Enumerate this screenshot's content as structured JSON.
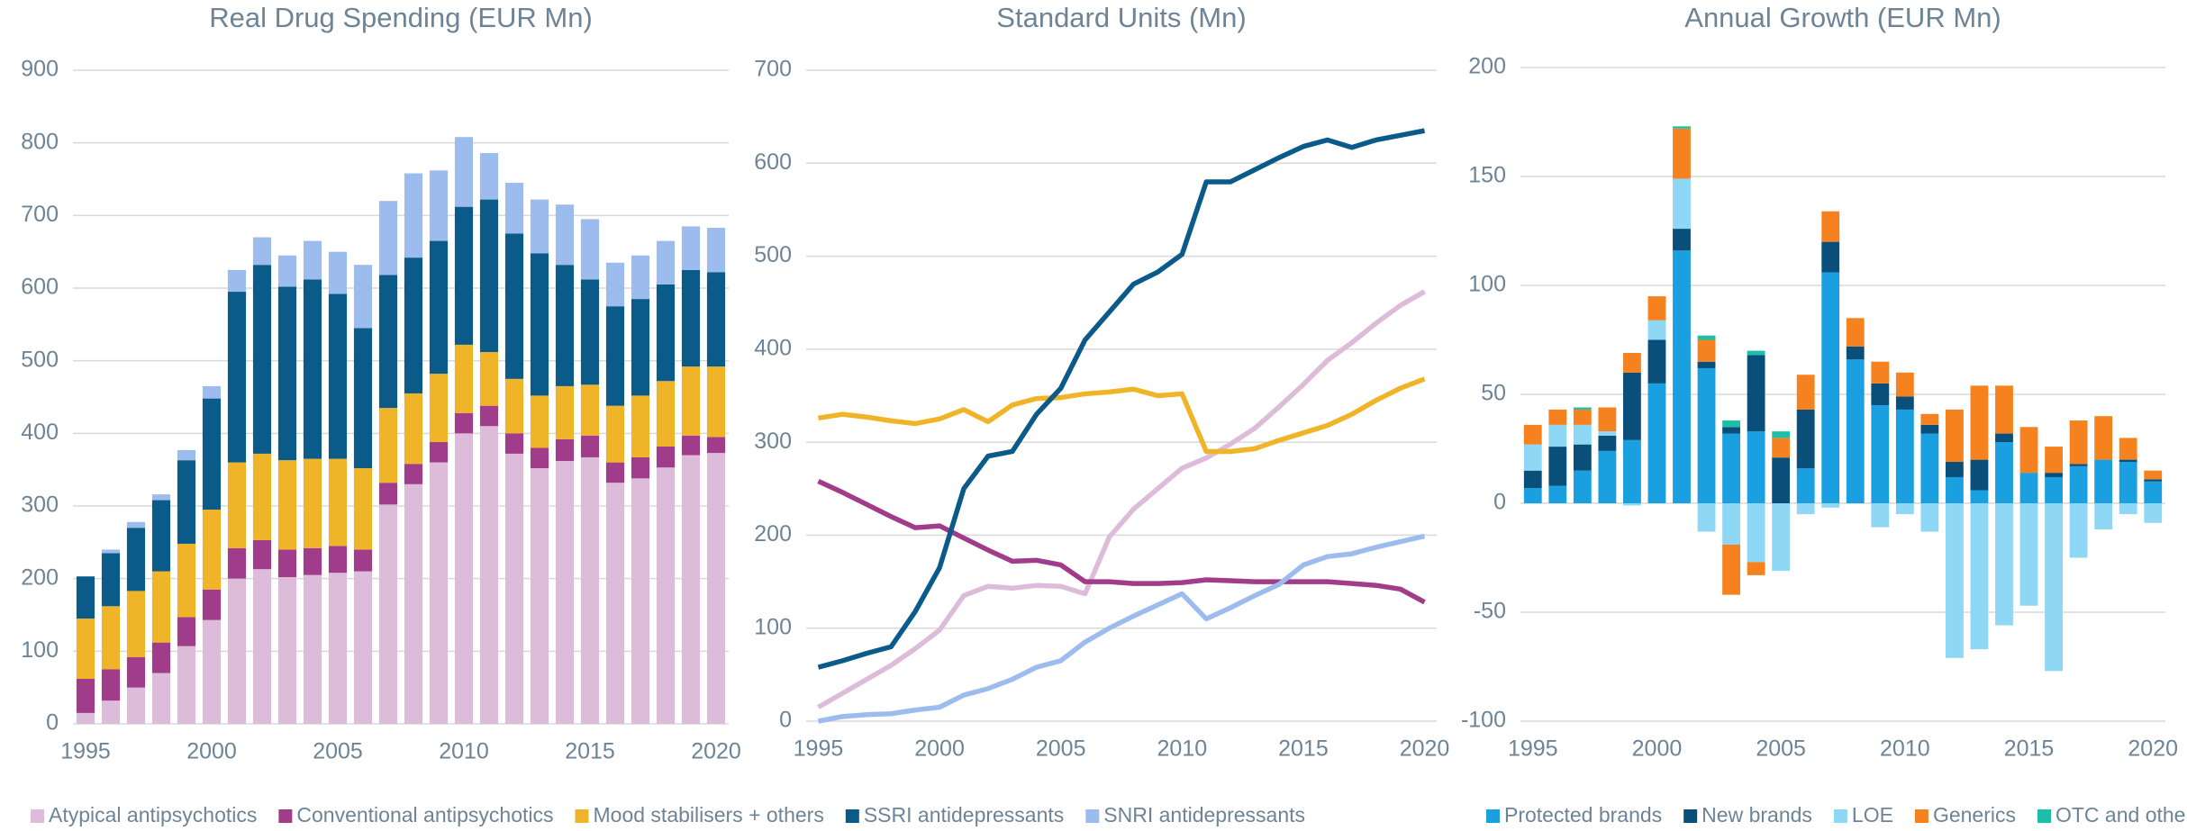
{
  "chart_data": [
    {
      "type": "bar",
      "stacked": true,
      "title": "Real Drug Spending (EUR Mn)",
      "grid": true,
      "legend": "bottom",
      "x": [
        1995,
        1996,
        1997,
        1998,
        1999,
        2000,
        2001,
        2002,
        2003,
        2004,
        2005,
        2006,
        2007,
        2008,
        2009,
        2010,
        2011,
        2012,
        2013,
        2014,
        2015,
        2016,
        2017,
        2018,
        2019,
        2020
      ],
      "xlim": [
        1994.5,
        2020.5
      ],
      "xticks": [
        1995,
        2000,
        2005,
        2010,
        2015,
        2020
      ],
      "ylim": [
        0,
        900
      ],
      "yticks": [
        0,
        100,
        200,
        300,
        400,
        500,
        600,
        700,
        800,
        900
      ],
      "series": [
        {
          "name": "Atypical antipsychotics",
          "color": "#dcbcd8",
          "values": [
            15,
            32,
            50,
            70,
            107,
            143,
            200,
            213,
            202,
            205,
            208,
            210,
            302,
            330,
            360,
            400,
            410,
            372,
            352,
            362,
            367,
            332,
            338,
            353,
            370,
            373
          ]
        },
        {
          "name": "Conventional antipsychotics",
          "color": "#a03c8a",
          "values": [
            47,
            43,
            42,
            42,
            40,
            42,
            42,
            40,
            38,
            37,
            37,
            30,
            30,
            28,
            28,
            28,
            28,
            28,
            28,
            30,
            30,
            28,
            29,
            29,
            27,
            22
          ]
        },
        {
          "name": "Mood stabilisers + others",
          "color": "#f0b429",
          "values": [
            83,
            87,
            91,
            98,
            101,
            110,
            118,
            119,
            123,
            123,
            120,
            112,
            103,
            97,
            94,
            94,
            74,
            75,
            72,
            73,
            70,
            78,
            85,
            90,
            95,
            97
          ]
        },
        {
          "name": "SSRI antidepressants",
          "color": "#0a5a8a",
          "values": [
            58,
            73,
            87,
            98,
            115,
            153,
            235,
            260,
            239,
            247,
            227,
            193,
            183,
            187,
            183,
            190,
            210,
            200,
            196,
            167,
            145,
            137,
            133,
            133,
            133,
            130
          ]
        },
        {
          "name": "SNRI antidepressants",
          "color": "#9dbcee",
          "values": [
            0,
            5,
            8,
            8,
            14,
            17,
            30,
            38,
            43,
            53,
            58,
            87,
            102,
            116,
            97,
            96,
            64,
            70,
            74,
            83,
            83,
            60,
            60,
            60,
            60,
            61
          ]
        }
      ]
    },
    {
      "type": "line",
      "title": "Standard Units (Mn)",
      "grid": true,
      "x": [
        1995,
        1996,
        1997,
        1998,
        1999,
        2000,
        2001,
        2002,
        2003,
        2004,
        2005,
        2006,
        2007,
        2008,
        2009,
        2010,
        2011,
        2012,
        2013,
        2014,
        2015,
        2016,
        2017,
        2018,
        2019,
        2020
      ],
      "xlim": [
        1994.5,
        2020.5
      ],
      "xticks": [
        1995,
        2000,
        2005,
        2010,
        2015,
        2020
      ],
      "ylim": [
        0,
        700
      ],
      "yticks": [
        0,
        100,
        200,
        300,
        400,
        500,
        600,
        700
      ],
      "series": [
        {
          "color": "#dcbcd8",
          "values": [
            15,
            30,
            45,
            60,
            78,
            98,
            135,
            145,
            143,
            146,
            145,
            137,
            198,
            228,
            250,
            272,
            283,
            298,
            315,
            338,
            362,
            388,
            407,
            428,
            447,
            462
          ]
        },
        {
          "color": "#a03c8a",
          "values": [
            258,
            246,
            233,
            220,
            208,
            210,
            197,
            184,
            172,
            173,
            168,
            150,
            150,
            148,
            148,
            149,
            152,
            151,
            150,
            150,
            150,
            150,
            148,
            146,
            142,
            128
          ]
        },
        {
          "color": "#f0b429",
          "values": [
            326,
            330,
            327,
            323,
            320,
            325,
            335,
            322,
            340,
            347,
            348,
            352,
            354,
            357,
            350,
            352,
            290,
            290,
            293,
            302,
            310,
            318,
            330,
            345,
            358,
            368
          ]
        },
        {
          "color": "#0a5a8a",
          "values": [
            58,
            65,
            73,
            80,
            118,
            165,
            250,
            285,
            290,
            330,
            358,
            410,
            440,
            470,
            483,
            502,
            580,
            580,
            593,
            606,
            618,
            625,
            617,
            625,
            630,
            635
          ]
        },
        {
          "color": "#9dbcee",
          "values": [
            0,
            5,
            7,
            8,
            12,
            15,
            28,
            35,
            45,
            58,
            65,
            85,
            100,
            113,
            125,
            137,
            110,
            122,
            135,
            147,
            168,
            177,
            180,
            187,
            193,
            199
          ]
        }
      ]
    },
    {
      "type": "bar",
      "stacked": true,
      "title": "Annual Growth (EUR Mn)",
      "grid": true,
      "legend": "bottom",
      "x": [
        1995,
        1996,
        1997,
        1998,
        1999,
        2000,
        2001,
        2002,
        2003,
        2004,
        2005,
        2006,
        2007,
        2008,
        2009,
        2010,
        2011,
        2012,
        2013,
        2014,
        2015,
        2016,
        2017,
        2018,
        2019,
        2020
      ],
      "xlim": [
        1994.5,
        2020.5
      ],
      "xticks": [
        1995,
        2000,
        2005,
        2010,
        2015,
        2020
      ],
      "ylim": [
        -100,
        200
      ],
      "yticks": [
        -100,
        -50,
        0,
        50,
        100,
        150,
        200
      ],
      "series": [
        {
          "name": "Protected brands",
          "color": "#1a9fe0",
          "values": [
            7,
            8,
            15,
            24,
            29,
            55,
            116,
            62,
            32,
            33,
            0,
            16,
            106,
            66,
            45,
            43,
            32,
            12,
            6,
            28,
            14,
            12,
            17,
            20,
            19,
            10
          ]
        },
        {
          "name": "New brands",
          "color": "#0a4f7a",
          "values": [
            8,
            18,
            12,
            7,
            31,
            20,
            10,
            3,
            3,
            35,
            21,
            27,
            14,
            6,
            10,
            6,
            4,
            7,
            14,
            4,
            0,
            2,
            1,
            0,
            1,
            1
          ]
        },
        {
          "name": "LOE",
          "color": "#8fd8f5",
          "values": [
            12,
            10,
            9,
            2,
            -1,
            9,
            23,
            -13,
            -19,
            -27,
            -31,
            -5,
            -2,
            0,
            -11,
            -5,
            -13,
            -71,
            -67,
            -56,
            -47,
            -77,
            -25,
            -12,
            -5,
            -9
          ]
        },
        {
          "name": "Generics",
          "color": "#f5821f",
          "values": [
            9,
            7,
            7,
            11,
            9,
            11,
            23,
            10,
            -23,
            -6,
            9,
            16,
            14,
            13,
            10,
            11,
            5,
            24,
            34,
            22,
            21,
            12,
            20,
            20,
            10,
            4
          ]
        },
        {
          "name": "OTC and other",
          "color": "#1cbfa8",
          "values": [
            0,
            0,
            1,
            0,
            0,
            0,
            1,
            2,
            3,
            2,
            3,
            0,
            0,
            0,
            0,
            0,
            0,
            0,
            0,
            0,
            0,
            0,
            0,
            0,
            0,
            0
          ]
        }
      ]
    }
  ]
}
